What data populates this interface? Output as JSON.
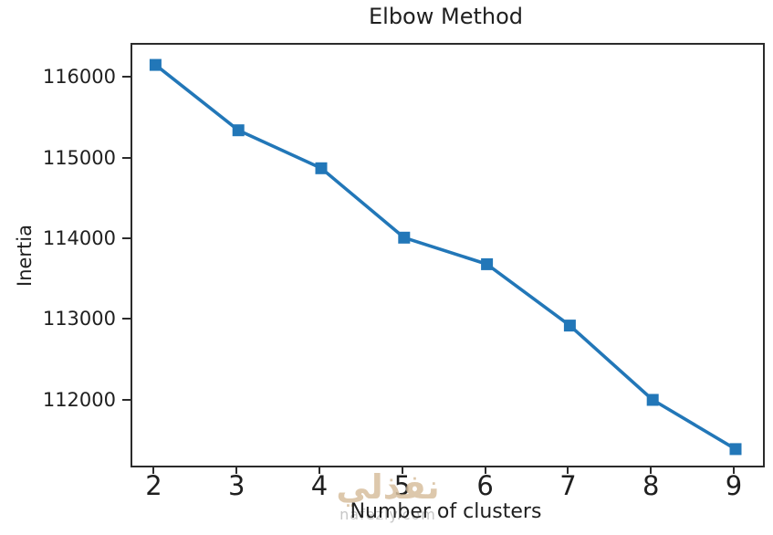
{
  "figure": {
    "background": "#ffffff"
  },
  "chart_data": {
    "type": "line",
    "title": "Elbow Method",
    "xlabel": "Number of clusters",
    "ylabel": "Inertia",
    "x": [
      2,
      3,
      4,
      5,
      6,
      7,
      8,
      9
    ],
    "values": [
      116170,
      115360,
      114890,
      114030,
      113700,
      112940,
      112020,
      111410
    ],
    "series_name": "Inertia",
    "xticks": [
      2,
      3,
      4,
      5,
      6,
      7,
      8,
      9
    ],
    "yticks": [
      112000,
      113000,
      114000,
      115000,
      116000
    ],
    "xlim": [
      1.72,
      9.33
    ],
    "ylim": [
      111205,
      116420
    ],
    "grid": false,
    "legend": "none",
    "marker": "square",
    "line_color": "#2277b8",
    "axis_color": "#2b2b2b",
    "text_color": "#1f1f1f"
  },
  "watermark": {
    "text": "نفذلي",
    "domain": "nafezly.com",
    "text_color": "#d8bf9e",
    "domain_color": "#c4c4c4"
  }
}
